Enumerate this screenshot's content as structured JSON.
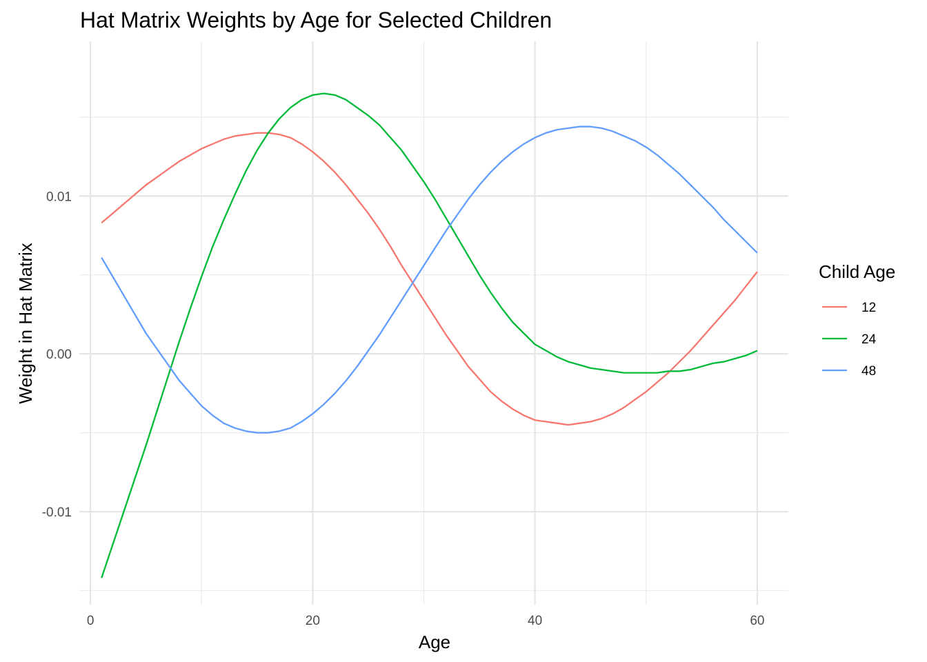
{
  "chart_data": {
    "type": "line",
    "title": "Hat Matrix Weights by Age for Selected Children",
    "xlabel": "Age",
    "ylabel": "Weight in Hat Matrix",
    "xlim": [
      -1,
      62.8
    ],
    "ylim": [
      -0.0159,
      0.0198
    ],
    "x_ticks": [
      0,
      20,
      40,
      60
    ],
    "x_tick_labels": [
      "0",
      "20",
      "40",
      "60"
    ],
    "x_minor_ticks": [
      10,
      30,
      50
    ],
    "y_ticks": [
      -0.01,
      0.0,
      0.01
    ],
    "y_tick_labels": [
      "-0.01",
      "0.00",
      "0.01"
    ],
    "y_minor_ticks": [
      -0.015,
      -0.005,
      0.005,
      0.015
    ],
    "grid": true,
    "legend": {
      "title": "Child Age",
      "position": "right"
    },
    "series": [
      {
        "name": "12",
        "color": "#F8766D",
        "x": [
          1,
          2,
          3,
          4,
          5,
          6,
          7,
          8,
          9,
          10,
          11,
          12,
          13,
          14,
          15,
          16,
          17,
          18,
          19,
          20,
          21,
          22,
          23,
          24,
          25,
          26,
          27,
          28,
          29,
          30,
          31,
          32,
          33,
          34,
          35,
          36,
          37,
          38,
          39,
          40,
          41,
          42,
          43,
          44,
          45,
          46,
          47,
          48,
          49,
          50,
          51,
          52,
          53,
          54,
          55,
          56,
          57,
          58,
          59,
          60
        ],
        "y": [
          0.0083,
          0.0089,
          0.0095,
          0.0101,
          0.0107,
          0.0112,
          0.0117,
          0.0122,
          0.0126,
          0.013,
          0.0133,
          0.0136,
          0.0138,
          0.0139,
          0.014,
          0.014,
          0.0139,
          0.0137,
          0.0133,
          0.0128,
          0.0122,
          0.0115,
          0.0107,
          0.0098,
          0.0089,
          0.0079,
          0.0068,
          0.0056,
          0.0045,
          0.0034,
          0.0023,
          0.0012,
          0.0002,
          -0.0008,
          -0.0016,
          -0.0024,
          -0.003,
          -0.0035,
          -0.0039,
          -0.0042,
          -0.0043,
          -0.0044,
          -0.0045,
          -0.0044,
          -0.0043,
          -0.0041,
          -0.0038,
          -0.0034,
          -0.0029,
          -0.0024,
          -0.0018,
          -0.0012,
          -0.0005,
          0.0002,
          0.001,
          0.0018,
          0.0026,
          0.0034,
          0.0043,
          0.0052
        ]
      },
      {
        "name": "24",
        "color": "#00BA38",
        "x": [
          1,
          2,
          3,
          4,
          5,
          6,
          7,
          8,
          9,
          10,
          11,
          12,
          13,
          14,
          15,
          16,
          17,
          18,
          19,
          20,
          21,
          22,
          23,
          24,
          25,
          26,
          27,
          28,
          29,
          30,
          31,
          32,
          33,
          34,
          35,
          36,
          37,
          38,
          39,
          40,
          41,
          42,
          43,
          44,
          45,
          46,
          47,
          48,
          49,
          50,
          51,
          52,
          53,
          54,
          55,
          56,
          57,
          58,
          59,
          60
        ],
        "y": [
          -0.0142,
          -0.0121,
          -0.01,
          -0.0079,
          -0.0058,
          -0.0036,
          -0.0014,
          0.0008,
          0.0029,
          0.0049,
          0.0068,
          0.0085,
          0.0101,
          0.0116,
          0.0129,
          0.014,
          0.0149,
          0.0156,
          0.0161,
          0.0164,
          0.0165,
          0.0164,
          0.0161,
          0.0156,
          0.0151,
          0.0145,
          0.0137,
          0.0129,
          0.0119,
          0.0109,
          0.0098,
          0.0086,
          0.0074,
          0.0062,
          0.005,
          0.0039,
          0.0029,
          0.002,
          0.0013,
          0.0006,
          0.0002,
          -0.0002,
          -0.0005,
          -0.0007,
          -0.0009,
          -0.001,
          -0.0011,
          -0.0012,
          -0.0012,
          -0.0012,
          -0.0012,
          -0.0011,
          -0.0011,
          -0.001,
          -0.0008,
          -0.0006,
          -0.0005,
          -0.0003,
          -0.0001,
          0.0002
        ]
      },
      {
        "name": "48",
        "color": "#619CFF",
        "x": [
          1,
          2,
          3,
          4,
          5,
          6,
          7,
          8,
          9,
          10,
          11,
          12,
          13,
          14,
          15,
          16,
          17,
          18,
          19,
          20,
          21,
          22,
          23,
          24,
          25,
          26,
          27,
          28,
          29,
          30,
          31,
          32,
          33,
          34,
          35,
          36,
          37,
          38,
          39,
          40,
          41,
          42,
          43,
          44,
          45,
          46,
          47,
          48,
          49,
          50,
          51,
          52,
          53,
          54,
          55,
          56,
          57,
          58,
          59,
          60
        ],
        "y": [
          0.0061,
          0.0049,
          0.0037,
          0.0025,
          0.0013,
          0.0003,
          -0.0007,
          -0.0017,
          -0.0025,
          -0.0033,
          -0.0039,
          -0.0044,
          -0.0047,
          -0.0049,
          -0.005,
          -0.005,
          -0.0049,
          -0.0047,
          -0.0043,
          -0.0038,
          -0.0032,
          -0.0025,
          -0.0017,
          -0.0008,
          0.0002,
          0.0012,
          0.0023,
          0.0034,
          0.0045,
          0.0056,
          0.0067,
          0.0078,
          0.0088,
          0.0098,
          0.0107,
          0.0115,
          0.0122,
          0.0128,
          0.0133,
          0.0137,
          0.014,
          0.0142,
          0.0143,
          0.0144,
          0.0144,
          0.0143,
          0.0141,
          0.0138,
          0.0135,
          0.0131,
          0.0126,
          0.012,
          0.0114,
          0.0107,
          0.01,
          0.0093,
          0.0085,
          0.0078,
          0.0071,
          0.0064
        ]
      }
    ]
  }
}
